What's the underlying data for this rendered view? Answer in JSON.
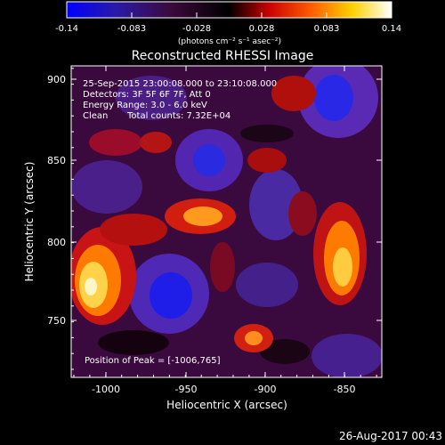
{
  "colorbar": {
    "tick_labels": [
      "-0.14",
      "-0.083",
      "-0.028",
      "0.028",
      "0.083",
      "0.14"
    ],
    "unit_label": "(photons cm⁻² s⁻¹ asec⁻²)",
    "range": [
      -0.14,
      0.14
    ],
    "colors": [
      "#0000ff",
      "#2a1aa8",
      "#3c0a3c",
      "#000000",
      "#c80000",
      "#ff5a00",
      "#ffd200",
      "#ffffff"
    ]
  },
  "plot": {
    "title": "Reconstructed RHESSI Image",
    "xlabel": "Heliocentric X (arcsec)",
    "ylabel": "Heliocentric Y (arcsec)",
    "x_ticks": [
      "-1000",
      "-950",
      "-900",
      "-850"
    ],
    "y_ticks": [
      "750",
      "800",
      "850",
      "900"
    ],
    "xlim": [
      -1025,
      -830
    ],
    "ylim": [
      712,
      912
    ]
  },
  "annotations": {
    "time_range": "25-Sep-2015 23:00:08.000 to 23:10:08.000",
    "detectors": "Detectors: 3F 5F 6F 7F, Att 0",
    "energy_range": "Energy Range: 3.0 - 6.0 keV",
    "method": "Clean",
    "total_counts": "Total counts: 7.32E+04",
    "peak_position": "Position of Peak = [-1006,765]"
  },
  "footer": {
    "timestamp": "26-Aug-2017 00:43"
  }
}
